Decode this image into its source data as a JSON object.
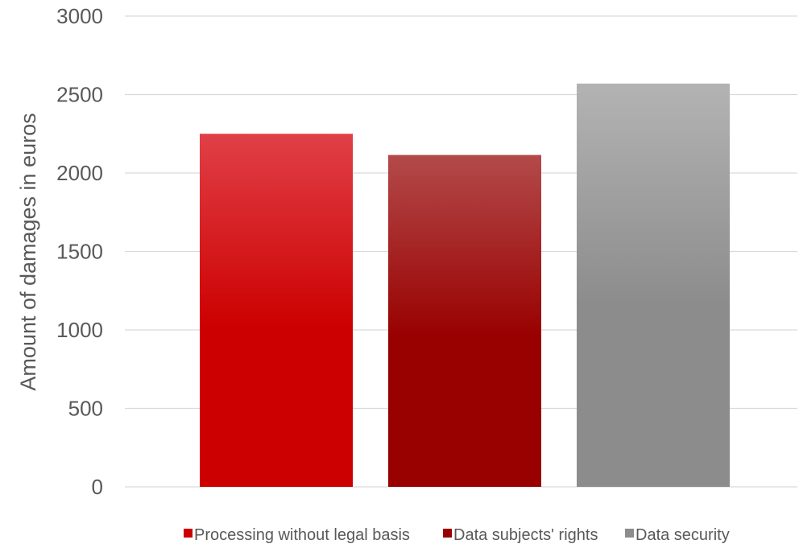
{
  "chart_data": {
    "type": "bar",
    "ylabel": "Amount of damages in euros",
    "ylim": [
      0,
      3000
    ],
    "yticks": [
      0,
      500,
      1000,
      1500,
      2000,
      2500,
      3000
    ],
    "grid": true,
    "legend_position": "bottom",
    "series": [
      {
        "name": "Processing without legal basis",
        "value": 2250,
        "color_top": "#e04047",
        "color_bottom": "#cc0000"
      },
      {
        "name": "Data subjects' rights",
        "value": 2115,
        "color_top": "#b34a4a",
        "color_bottom": "#990000"
      },
      {
        "name": "Data security",
        "value": 2570,
        "color_top": "#b3b3b3",
        "color_bottom": "#8c8c8c"
      }
    ]
  }
}
